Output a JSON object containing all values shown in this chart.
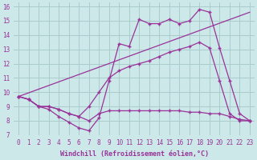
{
  "background_color": "#cce8e8",
  "grid_color": "#aacccc",
  "line_color": "#993399",
  "xlim": [
    -0.5,
    23.5
  ],
  "ylim": [
    7,
    16.3
  ],
  "yticks": [
    7,
    8,
    9,
    10,
    11,
    12,
    13,
    14,
    15,
    16
  ],
  "xticks": [
    0,
    1,
    2,
    3,
    4,
    5,
    6,
    7,
    8,
    9,
    10,
    11,
    12,
    13,
    14,
    15,
    16,
    17,
    18,
    19,
    20,
    21,
    22,
    23
  ],
  "xlabel": "Windchill (Refroidissement éolien,°C)",
  "line1_x": [
    0,
    1,
    2,
    3,
    4,
    5,
    6,
    7,
    8,
    9,
    10,
    11,
    12,
    13,
    14,
    15,
    16,
    17,
    18,
    19,
    20,
    21,
    22,
    23
  ],
  "line1_y": [
    9.7,
    9.5,
    9.0,
    8.8,
    8.3,
    7.9,
    7.5,
    7.3,
    8.2,
    10.8,
    13.4,
    13.2,
    15.1,
    14.8,
    14.8,
    15.1,
    14.8,
    15.0,
    15.8,
    15.6,
    13.1,
    10.8,
    8.5,
    8.0
  ],
  "line2_x": [
    0,
    23
  ],
  "line2_y": [
    9.7,
    15.6
  ],
  "line3_x": [
    0,
    1,
    2,
    3,
    4,
    5,
    6,
    7,
    8,
    9,
    10,
    11,
    12,
    13,
    14,
    15,
    16,
    17,
    18,
    19,
    20,
    21,
    22,
    23
  ],
  "line3_y": [
    9.7,
    9.5,
    9.0,
    9.0,
    8.8,
    8.5,
    8.3,
    9.0,
    10.0,
    11.0,
    11.5,
    11.8,
    12.0,
    12.2,
    12.5,
    12.8,
    13.0,
    13.2,
    13.5,
    13.1,
    10.8,
    8.5,
    8.0,
    8.0
  ],
  "line4_x": [
    0,
    1,
    2,
    3,
    4,
    5,
    6,
    7,
    8,
    9,
    10,
    11,
    12,
    13,
    14,
    15,
    16,
    17,
    18,
    19,
    20,
    21,
    22,
    23
  ],
  "line4_y": [
    9.7,
    9.5,
    9.0,
    9.0,
    8.8,
    8.5,
    8.3,
    8.0,
    8.5,
    8.7,
    8.7,
    8.7,
    8.7,
    8.7,
    8.7,
    8.7,
    8.7,
    8.6,
    8.6,
    8.5,
    8.5,
    8.3,
    8.1,
    8.0
  ]
}
